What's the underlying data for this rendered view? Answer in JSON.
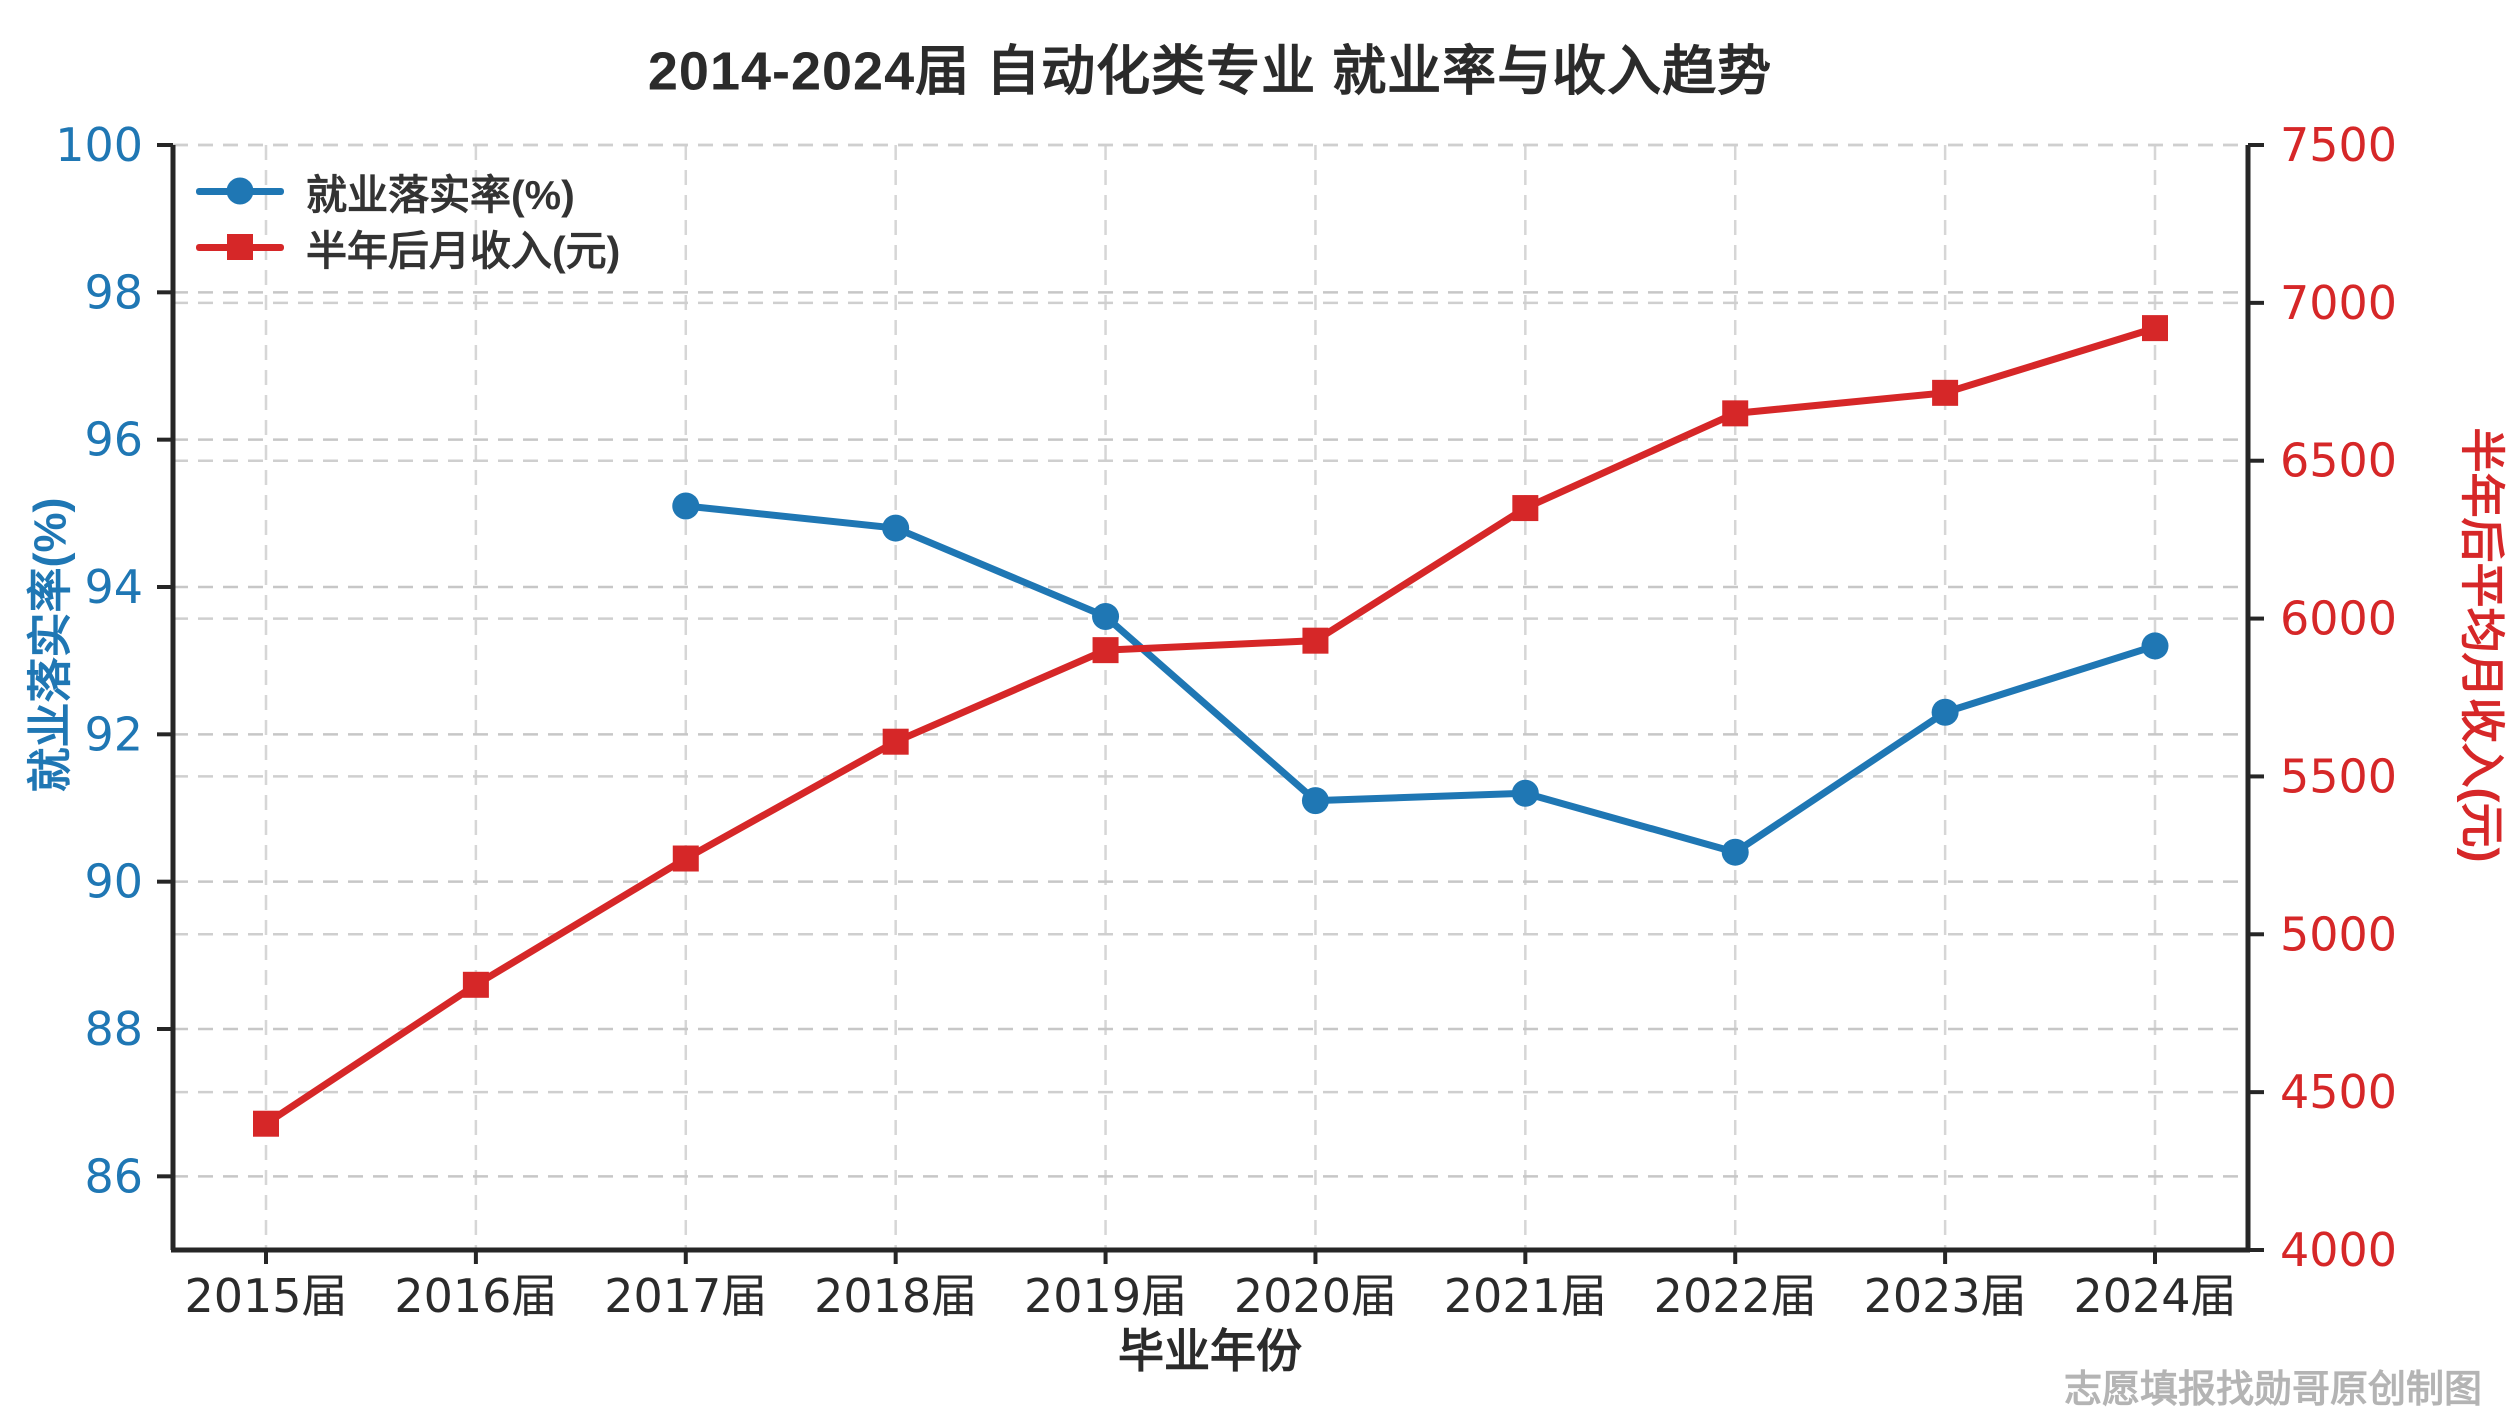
{
  "title": "2014-2024届  自动化类专业  就业率与收入趋势",
  "watermark": "志愿填报找勋哥原创制图",
  "legend": {
    "entries": [
      {
        "label": "就业落实率(%)",
        "marker": "circle",
        "color": "#1f77b4"
      },
      {
        "label": "半年后月收入(元)",
        "marker": "square",
        "color": "#d62728"
      }
    ]
  },
  "chart_data": {
    "type": "line",
    "title": "2014-2024届 自动化类专业 就业率与收入趋势",
    "xlabel": "毕业年份",
    "x": {
      "label": "毕业年份",
      "years": [
        2015,
        2016,
        2017,
        2018,
        2019,
        2020,
        2021,
        2022,
        2023,
        2024
      ],
      "categories": [
        "2015届",
        "2016届",
        "2017届",
        "2018届",
        "2019届",
        "2020届",
        "2021届",
        "2022届",
        "2023届",
        "2024届"
      ]
    },
    "left_axis": {
      "label": "就业落实率(%)",
      "color": "#1f77b4",
      "ticks": [
        86,
        88,
        90,
        92,
        94,
        96,
        98,
        100
      ],
      "range": [
        85,
        100
      ]
    },
    "right_axis": {
      "label": "半年后平均月收入(元)",
      "color": "#d62728",
      "ticks": [
        4000,
        4500,
        5000,
        5500,
        6000,
        6500,
        7000,
        7500
      ],
      "range": [
        4000,
        7500
      ]
    },
    "series": [
      {
        "name": "就业落实率(%)",
        "axis": "left",
        "color": "#1f77b4",
        "marker": "circle",
        "values": [
          null,
          null,
          95.1,
          94.8,
          93.6,
          91.1,
          91.2,
          90.4,
          92.3,
          93.2
        ]
      },
      {
        "name": "半年后月收入(元)",
        "axis": "right",
        "color": "#d62728",
        "marker": "square",
        "values": [
          4400,
          4840,
          5240,
          5610,
          5900,
          5930,
          6350,
          6650,
          6715,
          6920
        ]
      }
    ],
    "grid": {
      "style": "dashed",
      "color": "#cccccc",
      "vertical_per_year": true,
      "horizontal_both_axes": true
    },
    "legend_position": "upper-left"
  }
}
